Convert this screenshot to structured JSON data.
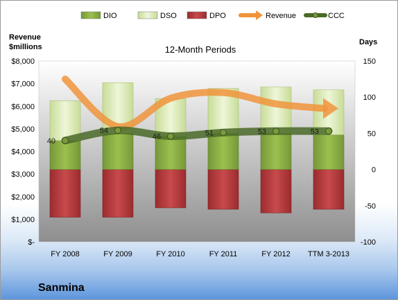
{
  "chart_data": {
    "type": "bar",
    "title": "12-Month Periods",
    "company": "Sanmina",
    "categories": [
      "FY 2008",
      "FY 2009",
      "FY 2010",
      "FY 2011",
      "FY 2012",
      "TTM 3-2013"
    ],
    "left_axis": {
      "label_line1": "Revenue",
      "label_line2": "$millions",
      "ylim": [
        0,
        8000
      ],
      "ticks": [
        0,
        1000,
        2000,
        3000,
        4000,
        5000,
        6000,
        7000,
        8000
      ],
      "tick_labels": [
        "$-",
        "$1,000",
        "$2,000",
        "$3,000",
        "$4,000",
        "$5,000",
        "$6,000",
        "$7,000",
        "$8,000"
      ]
    },
    "right_axis": {
      "label": "Days",
      "ylim": [
        -100,
        150
      ],
      "ticks": [
        -100,
        -50,
        0,
        50,
        100,
        150
      ],
      "tick_labels": [
        "-100",
        "-50",
        "0",
        "50",
        "100",
        "150"
      ]
    },
    "legend": [
      "DIO",
      "DSO",
      "DPO",
      "Revenue",
      "CCC"
    ],
    "series": [
      {
        "name": "DIO",
        "axis": "days",
        "values": [
          40,
          50,
          46,
          50,
          50,
          48
        ],
        "color": "#8cb040"
      },
      {
        "name": "DSO",
        "axis": "days",
        "values": [
          55,
          70,
          52,
          62,
          64,
          62
        ],
        "color": "#dcecb8"
      },
      {
        "name": "DPO",
        "axis": "days",
        "values": [
          -66,
          -66,
          -53,
          -55,
          -60,
          -55
        ],
        "color": "#b8373a"
      },
      {
        "name": "Revenue",
        "axis": "revenue",
        "values": [
          7200,
          5100,
          6350,
          6600,
          6100,
          5900
        ],
        "color": "#f0943c"
      },
      {
        "name": "CCC",
        "axis": "days",
        "values": [
          40,
          54,
          46,
          51,
          53,
          53
        ],
        "color": "#4a6a28"
      }
    ],
    "ccc_labels": [
      "40",
      "54",
      "46",
      "51",
      "53",
      "53"
    ],
    "grid": false,
    "legend_position": "top"
  }
}
